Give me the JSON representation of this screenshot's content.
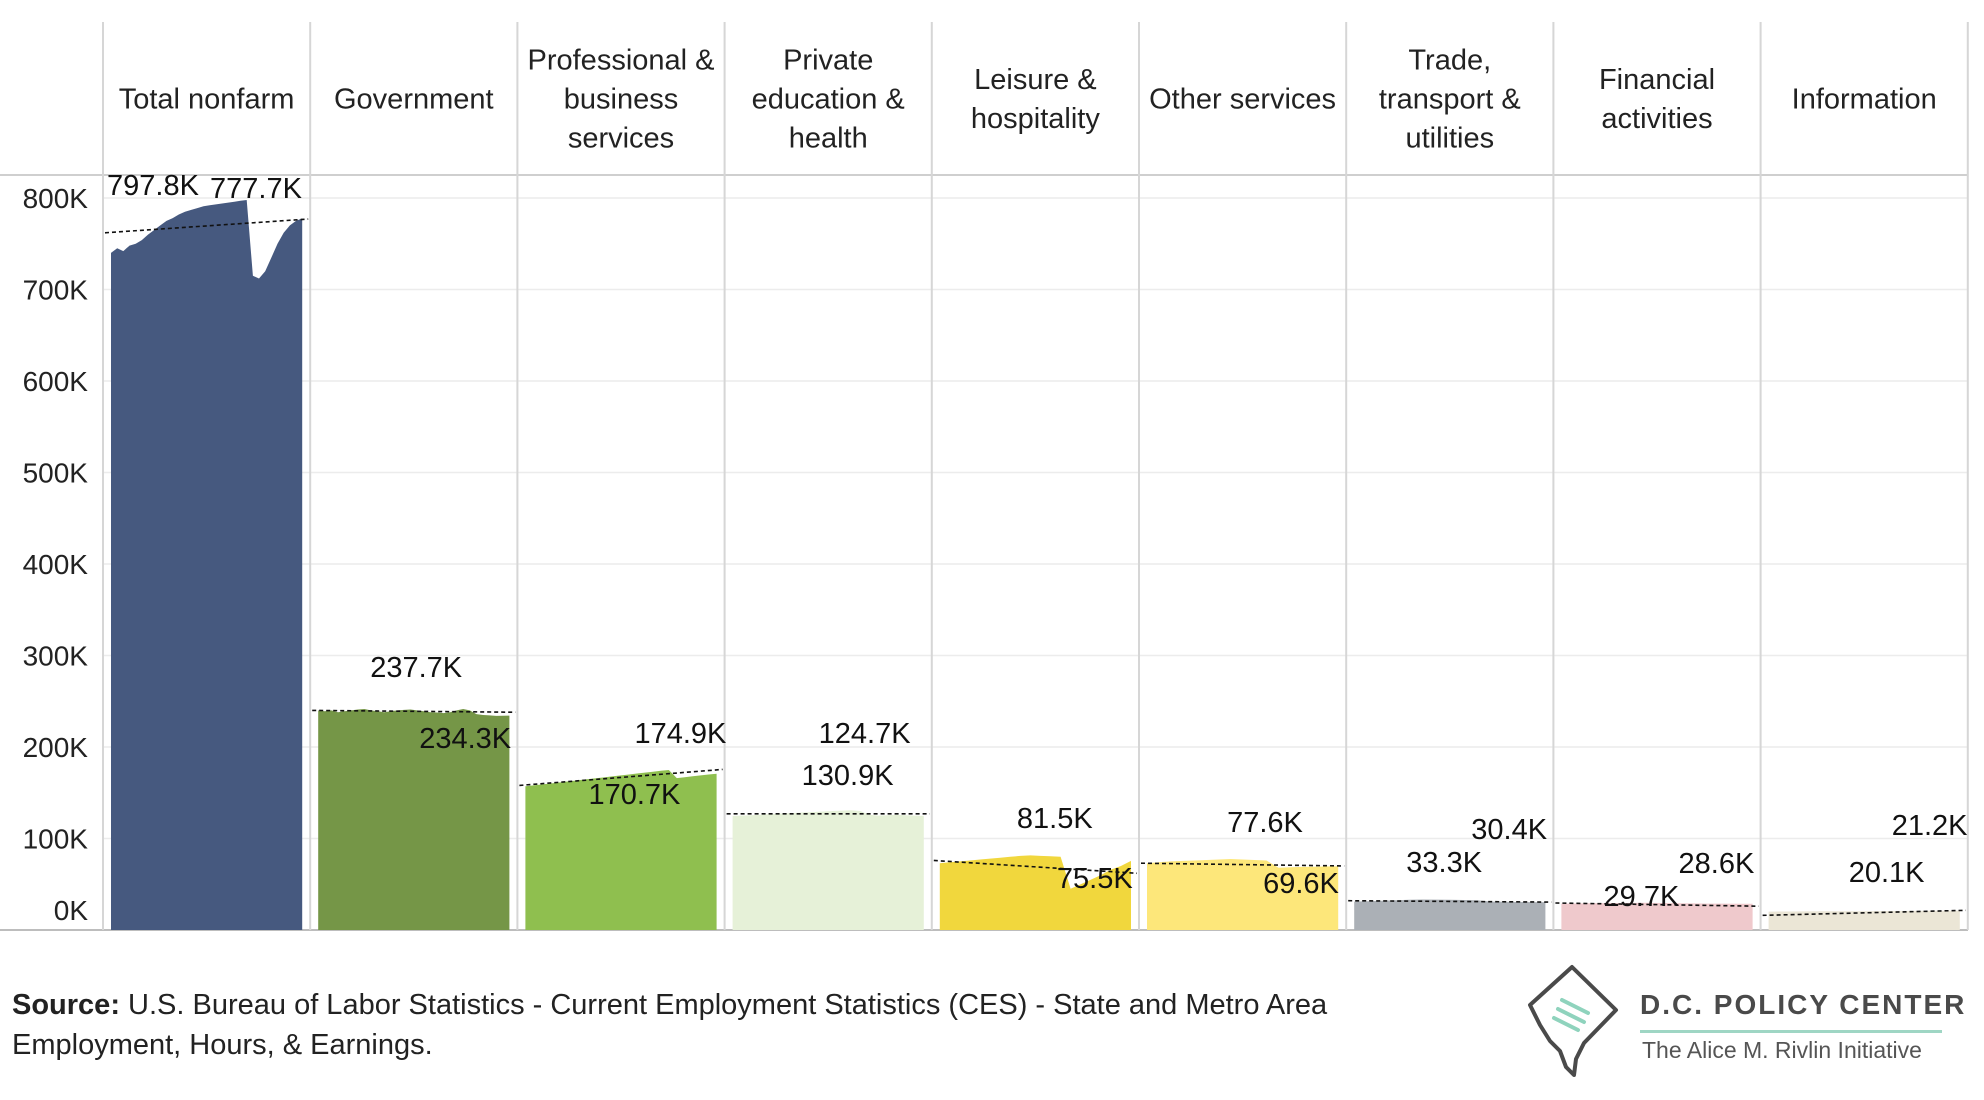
{
  "colors": {
    "Total nonfarm": "#46597f",
    "Government": "#759647",
    "Professional & business services": "#8fbf4f",
    "Private education & health": "#e6f1d8",
    "Leisure & hospitality": "#f1d73d",
    "Other services": "#fde77a",
    "Trade, transport & utilities": "#abb0b6",
    "Financial activities": "#efc9cc",
    "Information": "#ebe6d6"
  },
  "chart_data": {
    "type": "area",
    "title": "",
    "xlabel": "",
    "ylabel": "",
    "ylim": [
      0,
      850000
    ],
    "yticks": [
      0,
      100000,
      200000,
      300000,
      400000,
      500000,
      600000,
      700000,
      800000
    ],
    "ytick_labels": [
      "0K",
      "100K",
      "200K",
      "300K",
      "400K",
      "500K",
      "600K",
      "700K",
      "800K"
    ],
    "panels": [
      {
        "name": "Total nonfarm",
        "header": [
          "Total nonfarm"
        ],
        "values": [
          740000,
          745000,
          742000,
          748000,
          750000,
          754000,
          760000,
          765000,
          770000,
          775000,
          778000,
          782000,
          785000,
          787000,
          789000,
          791000,
          792000,
          793000,
          794000,
          795000,
          796000,
          797000,
          797800,
          715000,
          712000,
          720000,
          735000,
          750000,
          762000,
          770000,
          775000,
          777700
        ],
        "trend": [
          762000,
          777000
        ],
        "labels": [
          "797.8K",
          "777.7K"
        ]
      },
      {
        "name": "Government",
        "header": [
          "Government"
        ],
        "values": [
          240000,
          239000,
          240000,
          238000,
          239000,
          240000,
          241000,
          241500,
          240000,
          239000,
          238000,
          239000,
          240000,
          240500,
          241000,
          240000,
          239000,
          238000,
          237700,
          237000,
          238000,
          240000,
          241500,
          240000,
          236000,
          235000,
          234500,
          234000,
          234200,
          234300
        ],
        "trend": [
          240000,
          238000
        ],
        "labels": [
          "237.7K",
          "234.3K"
        ]
      },
      {
        "name": "Professional & business services",
        "header": [
          "Professional &",
          "business",
          "services"
        ],
        "values": [
          157000,
          158000,
          159000,
          160000,
          161000,
          162000,
          163000,
          164000,
          165000,
          166000,
          167000,
          168000,
          169000,
          170000,
          171000,
          172000,
          173000,
          174000,
          174900,
          166000,
          167000,
          168000,
          169000,
          170000,
          170700
        ],
        "trend": [
          158000,
          175500
        ],
        "labels": [
          "174.9K",
          "170.7K"
        ]
      },
      {
        "name": "Private education & health",
        "header": [
          "Private",
          "education &",
          "health"
        ],
        "values": [
          124700,
          125000,
          125500,
          126000,
          126500,
          127000,
          127500,
          128000,
          128500,
          129000,
          129500,
          130000,
          130500,
          130900,
          130000,
          126000,
          125000,
          125500,
          126000,
          125500,
          125000,
          124700
        ],
        "trend": [
          127000,
          127000
        ],
        "labels": [
          "124.7K",
          "130.9K"
        ]
      },
      {
        "name": "Leisure & hospitality",
        "header": [
          "Leisure &",
          "hospitality"
        ],
        "values": [
          73000,
          74000,
          75000,
          76000,
          77000,
          78000,
          79000,
          80000,
          81000,
          81500,
          81000,
          80500,
          80000,
          45000,
          50000,
          55000,
          60000,
          66000,
          70000,
          75500
        ],
        "trend": [
          76000,
          62000
        ],
        "labels": [
          "81.5K",
          "75.5K"
        ]
      },
      {
        "name": "Other services",
        "header": [
          "Other services"
        ],
        "values": [
          73000,
          74000,
          75000,
          75500,
          76000,
          76500,
          77000,
          77600,
          77000,
          76500,
          76000,
          68000,
          68500,
          69000,
          69200,
          69400,
          69600
        ],
        "trend": [
          73000,
          70000
        ],
        "labels": [
          "77.6K",
          "69.6K"
        ]
      },
      {
        "name": "Trade, transport & utilities",
        "header": [
          "Trade,",
          "transport &",
          "utilities"
        ],
        "values": [
          31000,
          31500,
          32000,
          32500,
          33000,
          33300,
          33200,
          33000,
          32800,
          32600,
          31000,
          30800,
          30600,
          30500,
          30400
        ],
        "trend": [
          32000,
          30500
        ],
        "labels": [
          "33.3K",
          "30.4K"
        ]
      },
      {
        "name": "Financial activities",
        "header": [
          "Financial",
          "activities"
        ],
        "values": [
          28800,
          29000,
          29200,
          29400,
          29500,
          29600,
          29700,
          29500,
          29300,
          29100,
          28900,
          28800,
          28700,
          28600
        ],
        "trend": [
          29500,
          26000
        ],
        "labels": [
          "29.7K",
          "28.6K"
        ]
      },
      {
        "name": "Information",
        "header": [
          "Information"
        ],
        "values": [
          20100,
          20200,
          20300,
          20400,
          20500,
          20600,
          20700,
          20800,
          20900,
          21000,
          21100,
          21200
        ],
        "trend": [
          16000,
          21500
        ],
        "labels": [
          "20.1K",
          "21.2K"
        ]
      }
    ]
  },
  "source": {
    "label": "Source:",
    "text": " U.S. Bureau of Labor Statistics - Current Employment Statistics (CES) - State and Metro Area Employment, Hours, & Earnings."
  },
  "logo": {
    "title": "D.C. POLICY CENTER",
    "subtitle": "The Alice M. Rivlin Initiative"
  }
}
